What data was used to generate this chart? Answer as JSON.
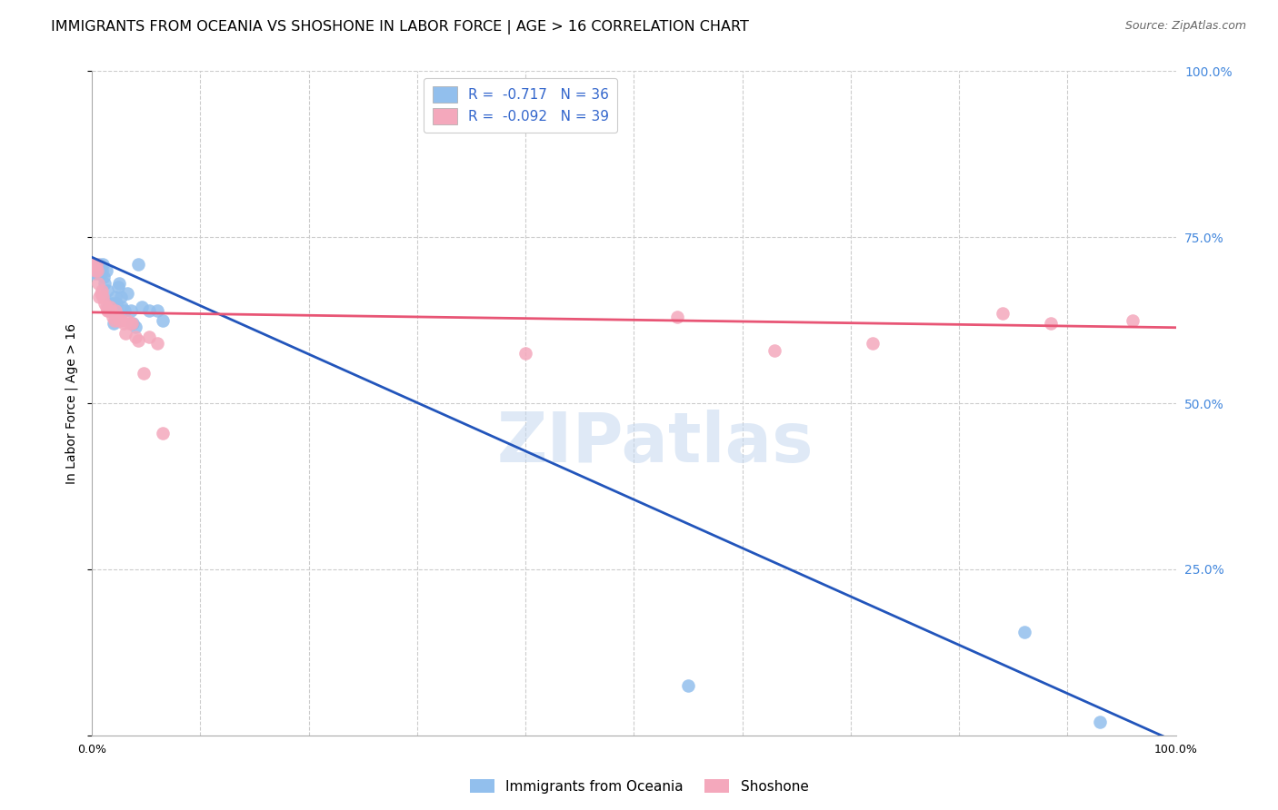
{
  "title": "IMMIGRANTS FROM OCEANIA VS SHOSHONE IN LABOR FORCE | AGE > 16 CORRELATION CHART",
  "source": "Source: ZipAtlas.com",
  "ylabel": "In Labor Force | Age > 16",
  "oceania_color": "#92bfed",
  "shoshone_color": "#f4a8bc",
  "trend_oceania_color": "#2255bb",
  "trend_shoshone_color": "#e85575",
  "watermark": "ZIPatlas",
  "oceania_x": [
    0.002,
    0.003,
    0.005,
    0.006,
    0.007,
    0.008,
    0.009,
    0.01,
    0.011,
    0.012,
    0.013,
    0.014,
    0.015,
    0.016,
    0.018,
    0.019,
    0.02,
    0.022,
    0.023,
    0.024,
    0.025,
    0.027,
    0.028,
    0.03,
    0.033,
    0.036,
    0.038,
    0.04,
    0.043,
    0.046,
    0.053,
    0.06,
    0.065,
    0.55,
    0.86,
    0.93
  ],
  "oceania_y": [
    0.695,
    0.7,
    0.695,
    0.7,
    0.71,
    0.695,
    0.7,
    0.71,
    0.69,
    0.68,
    0.7,
    0.67,
    0.645,
    0.65,
    0.64,
    0.65,
    0.62,
    0.66,
    0.65,
    0.675,
    0.68,
    0.66,
    0.645,
    0.64,
    0.665,
    0.64,
    0.62,
    0.615,
    0.71,
    0.645,
    0.64,
    0.64,
    0.625,
    0.075,
    0.155,
    0.02
  ],
  "shoshone_x": [
    0.001,
    0.003,
    0.004,
    0.005,
    0.006,
    0.007,
    0.008,
    0.009,
    0.01,
    0.012,
    0.013,
    0.014,
    0.015,
    0.017,
    0.018,
    0.019,
    0.021,
    0.022,
    0.024,
    0.025,
    0.027,
    0.029,
    0.031,
    0.033,
    0.035,
    0.037,
    0.04,
    0.043,
    0.048,
    0.053,
    0.06,
    0.065,
    0.4,
    0.54,
    0.63,
    0.72,
    0.84,
    0.885,
    0.96
  ],
  "shoshone_y": [
    0.71,
    0.7,
    0.71,
    0.7,
    0.68,
    0.66,
    0.665,
    0.67,
    0.66,
    0.65,
    0.645,
    0.64,
    0.64,
    0.645,
    0.64,
    0.63,
    0.625,
    0.64,
    0.63,
    0.625,
    0.625,
    0.62,
    0.605,
    0.625,
    0.62,
    0.62,
    0.6,
    0.595,
    0.545,
    0.6,
    0.59,
    0.455,
    0.575,
    0.63,
    0.58,
    0.59,
    0.635,
    0.62,
    0.625
  ],
  "oceania_trend_x": [
    0.0,
    1.0
  ],
  "oceania_trend_y": [
    0.72,
    -0.01
  ],
  "shoshone_trend_x": [
    0.0,
    1.0
  ],
  "shoshone_trend_y": [
    0.637,
    0.614
  ],
  "xlim": [
    0.0,
    1.0
  ],
  "ylim": [
    0.0,
    1.0
  ],
  "xtick_positions": [
    0.0,
    0.1,
    0.2,
    0.3,
    0.4,
    0.5,
    0.6,
    0.7,
    0.8,
    0.9,
    1.0
  ],
  "xtick_labels": [
    "0.0%",
    "",
    "",
    "",
    "",
    "",
    "",
    "",
    "",
    "",
    "100.0%"
  ],
  "ytick_positions": [
    0.0,
    0.25,
    0.5,
    0.75,
    1.0
  ],
  "right_ytick_labels": [
    "",
    "25.0%",
    "50.0%",
    "75.0%",
    "100.0%"
  ],
  "grid_color": "#cccccc",
  "bg_color": "#ffffff",
  "title_fontsize": 11.5,
  "axis_label_fontsize": 10,
  "tick_fontsize": 9,
  "right_tick_color": "#4488dd",
  "legend_text_color": "#3366cc"
}
